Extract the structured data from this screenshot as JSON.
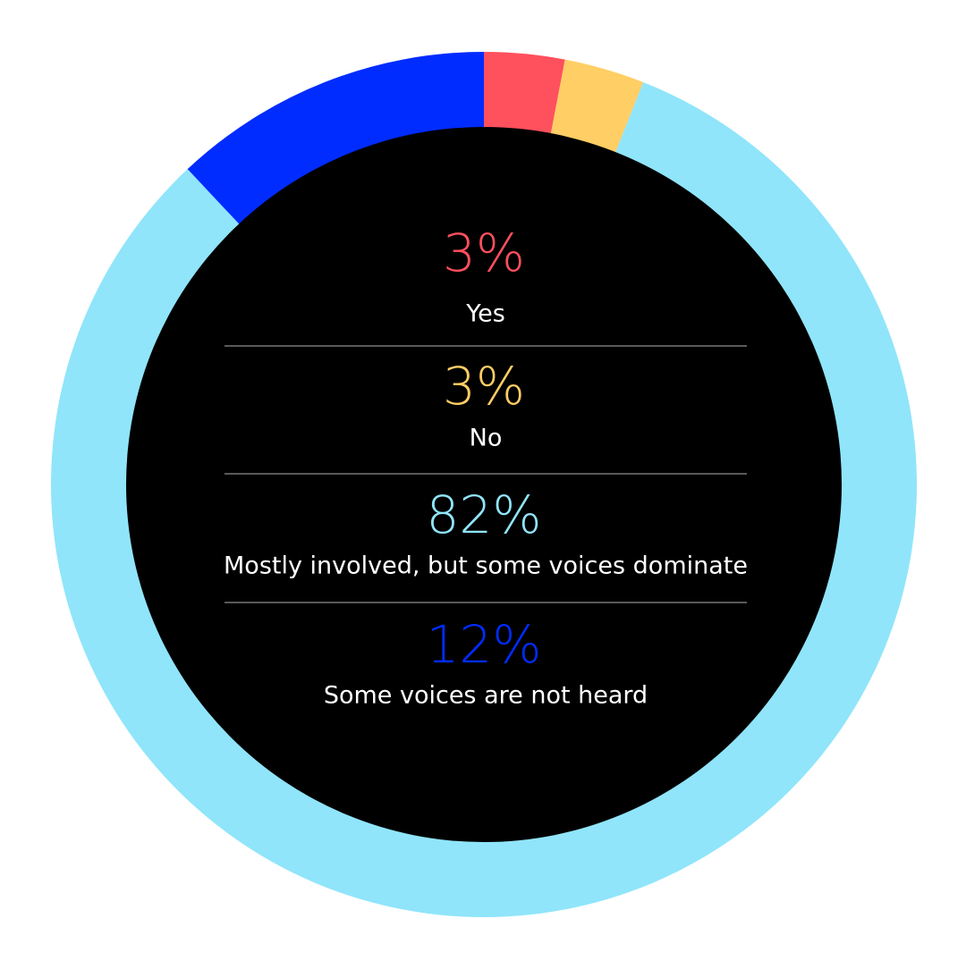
{
  "chart_data": {
    "type": "donut",
    "categories": [
      "Yes",
      "No",
      "Mostly involved, but some voices dominate",
      "Some voices are not heard"
    ],
    "values": [
      3,
      3,
      82,
      12
    ],
    "value_labels": [
      "3%",
      "3%",
      "82%",
      "12%"
    ],
    "colors": [
      "#ff505e",
      "#ffce65",
      "#90e5fa",
      "#002cff"
    ]
  }
}
